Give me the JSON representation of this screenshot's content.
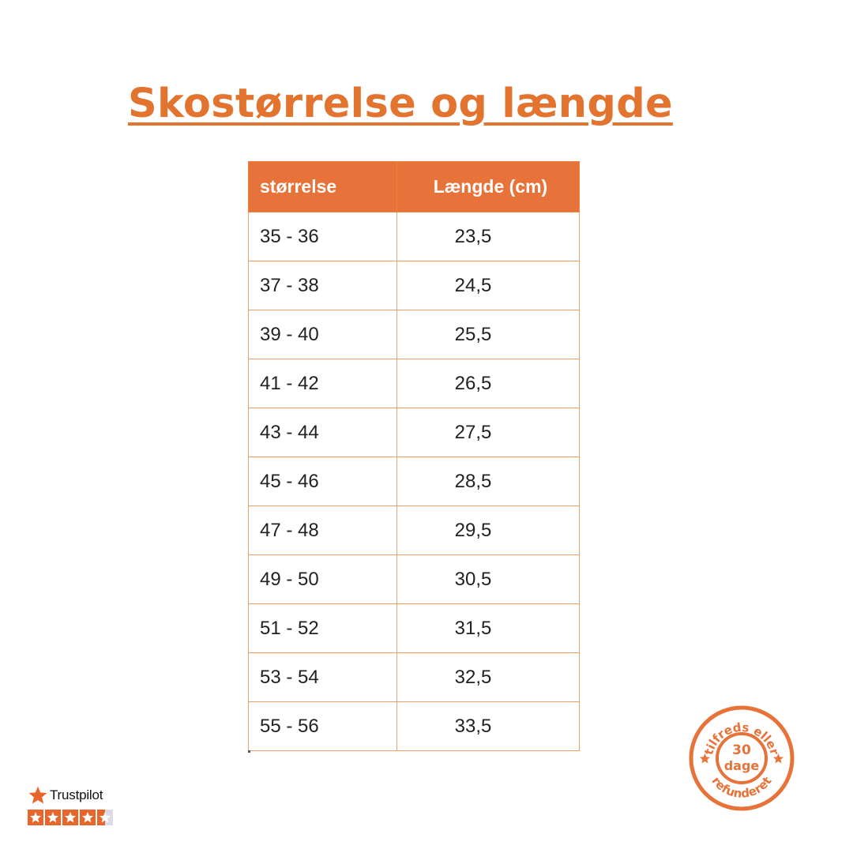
{
  "title": "Skostørrelse og længde",
  "colors": {
    "accent": "#e3742f",
    "header_bg": "#e8733a",
    "table_border": "#e8a16b",
    "trustpilot_fill": "#e8662b",
    "badge": "#e8733a"
  },
  "table": {
    "headers": [
      "størrelse",
      "Længde (cm)"
    ],
    "rows": [
      [
        "35 - 36",
        "23,5"
      ],
      [
        "37 - 38",
        "24,5"
      ],
      [
        "39 - 40",
        "25,5"
      ],
      [
        "41 - 42",
        "26,5"
      ],
      [
        "43 - 44",
        "27,5"
      ],
      [
        "45 - 46",
        "28,5"
      ],
      [
        "47 - 48",
        "29,5"
      ],
      [
        "49 - 50",
        "30,5"
      ],
      [
        "51 - 52",
        "31,5"
      ],
      [
        "53 - 54",
        "32,5"
      ],
      [
        "55 - 56",
        "33,5"
      ]
    ]
  },
  "trustpilot": {
    "label": "Trustpilot",
    "icon": "star-icon",
    "rating": 4.5,
    "max": 5
  },
  "badge": {
    "top_text": "tilfreds eller",
    "number": "30",
    "unit": "dage",
    "bottom_text": "refunderet",
    "icon": "star-icon"
  }
}
